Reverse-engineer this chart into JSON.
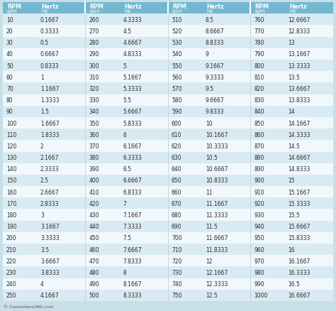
{
  "table_data": [
    [
      [
        10,
        "0.1667"
      ],
      [
        260,
        "4.3333"
      ],
      [
        510,
        "8.5"
      ],
      [
        760,
        "12.6667"
      ]
    ],
    [
      [
        20,
        "0.3333"
      ],
      [
        270,
        "4.5"
      ],
      [
        520,
        "8.6667"
      ],
      [
        770,
        "12.8333"
      ]
    ],
    [
      [
        30,
        "0.5"
      ],
      [
        280,
        "4.6667"
      ],
      [
        530,
        "8.8333"
      ],
      [
        780,
        "13"
      ]
    ],
    [
      [
        40,
        "0.6667"
      ],
      [
        290,
        "4.8333"
      ],
      [
        540,
        "9"
      ],
      [
        790,
        "13.1667"
      ]
    ],
    [
      [
        50,
        "0.8333"
      ],
      [
        300,
        "5"
      ],
      [
        550,
        "9.1667"
      ],
      [
        800,
        "13.3333"
      ]
    ],
    [
      [
        60,
        "1"
      ],
      [
        310,
        "5.1667"
      ],
      [
        560,
        "9.3333"
      ],
      [
        810,
        "13.5"
      ]
    ],
    [
      [
        70,
        "1.1667"
      ],
      [
        320,
        "5.3333"
      ],
      [
        570,
        "9.5"
      ],
      [
        820,
        "13.6667"
      ]
    ],
    [
      [
        80,
        "1.3333"
      ],
      [
        330,
        "5.5"
      ],
      [
        580,
        "9.6667"
      ],
      [
        830,
        "13.8333"
      ]
    ],
    [
      [
        90,
        "1.5"
      ],
      [
        340,
        "5.6667"
      ],
      [
        590,
        "9.8333"
      ],
      [
        840,
        "14"
      ]
    ],
    [
      [
        100,
        "1.6667"
      ],
      [
        350,
        "5.8333"
      ],
      [
        600,
        "10"
      ],
      [
        850,
        "14.1667"
      ]
    ],
    [
      [
        110,
        "1.8333"
      ],
      [
        360,
        "6"
      ],
      [
        610,
        "10.1667"
      ],
      [
        860,
        "14.3333"
      ]
    ],
    [
      [
        120,
        "2"
      ],
      [
        370,
        "6.1667"
      ],
      [
        620,
        "10.3333"
      ],
      [
        870,
        "14.5"
      ]
    ],
    [
      [
        130,
        "2.1667"
      ],
      [
        380,
        "6.3333"
      ],
      [
        630,
        "10.5"
      ],
      [
        880,
        "14.6667"
      ]
    ],
    [
      [
        140,
        "2.3333"
      ],
      [
        390,
        "6.5"
      ],
      [
        640,
        "10.6667"
      ],
      [
        890,
        "14.8333"
      ]
    ],
    [
      [
        150,
        "2.5"
      ],
      [
        400,
        "6.6667"
      ],
      [
        650,
        "10.8333"
      ],
      [
        900,
        "15"
      ]
    ],
    [
      [
        160,
        "2.6667"
      ],
      [
        410,
        "6.8333"
      ],
      [
        660,
        "11"
      ],
      [
        910,
        "15.1667"
      ]
    ],
    [
      [
        170,
        "2.8333"
      ],
      [
        420,
        "7"
      ],
      [
        670,
        "11.1667"
      ],
      [
        920,
        "15.3333"
      ]
    ],
    [
      [
        180,
        "3"
      ],
      [
        430,
        "7.1667"
      ],
      [
        680,
        "11.3333"
      ],
      [
        930,
        "15.5"
      ]
    ],
    [
      [
        190,
        "3.1667"
      ],
      [
        440,
        "7.3333"
      ],
      [
        690,
        "11.5"
      ],
      [
        940,
        "15.6667"
      ]
    ],
    [
      [
        200,
        "3.3333"
      ],
      [
        450,
        "7.5"
      ],
      [
        700,
        "11.6667"
      ],
      [
        950,
        "15.8333"
      ]
    ],
    [
      [
        210,
        "3.5"
      ],
      [
        460,
        "7.6667"
      ],
      [
        710,
        "11.8333"
      ],
      [
        960,
        "16"
      ]
    ],
    [
      [
        220,
        "3.6667"
      ],
      [
        470,
        "7.8333"
      ],
      [
        720,
        "12"
      ],
      [
        970,
        "16.1667"
      ]
    ],
    [
      [
        230,
        "3.8333"
      ],
      [
        480,
        "8"
      ],
      [
        730,
        "12.1667"
      ],
      [
        980,
        "16.3333"
      ]
    ],
    [
      [
        240,
        "4"
      ],
      [
        490,
        "8.1667"
      ],
      [
        740,
        "12.3333"
      ],
      [
        990,
        "16.5"
      ]
    ],
    [
      [
        250,
        "4.1667"
      ],
      [
        500,
        "8.3333"
      ],
      [
        750,
        "12.5"
      ],
      [
        1000,
        "16.6667"
      ]
    ]
  ],
  "header_bg": "#72b8d0",
  "row_bg_odd": "#daeaf3",
  "row_bg_even": "#f0f8fc",
  "outer_bg": "#c8dfe9",
  "footer_text": "© Converters360.com",
  "header_text_color": "#ffffff",
  "data_text_color": "#2a2a2a",
  "divider_color": "#ffffff",
  "font_size_header": 5.8,
  "font_size_data": 5.5
}
